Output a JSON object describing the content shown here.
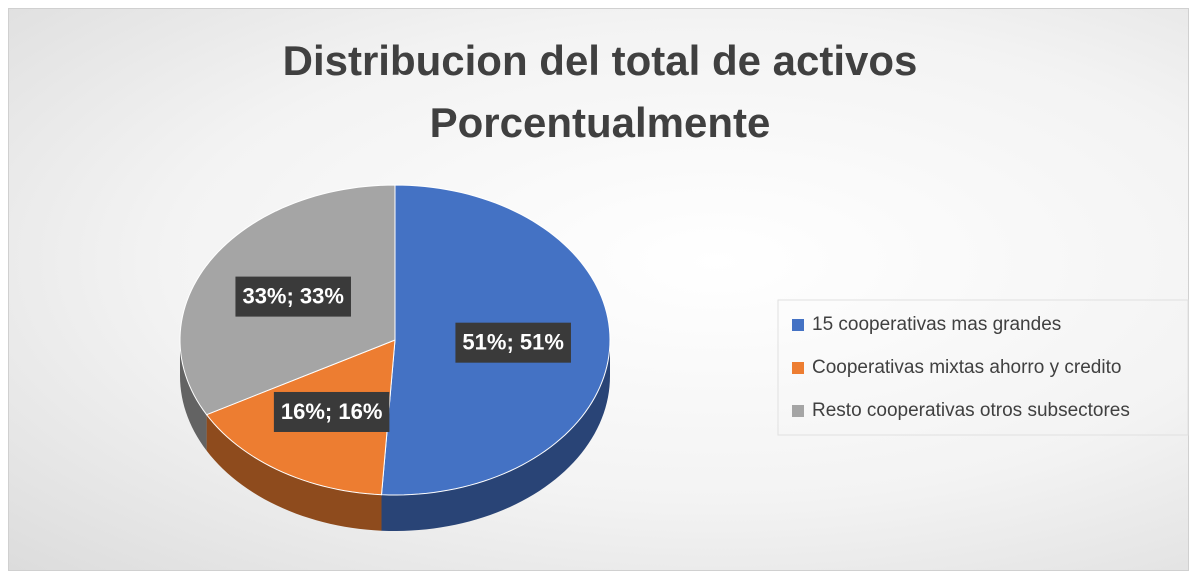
{
  "chart_data": {
    "type": "pie",
    "title": "Distribucion del total de activos Porcentualmente",
    "categories": [
      "15 cooperativas mas grandes",
      "Cooperativas mixtas ahorro y credito",
      "Resto cooperativas otros subsectores"
    ],
    "values": [
      51,
      16,
      33
    ],
    "value_labels": [
      "51%; 51%",
      "16%; 16%",
      "33%; 33%"
    ],
    "colors": [
      "#4472c4",
      "#ed7d31",
      "#a5a5a5"
    ],
    "legend": "right"
  }
}
